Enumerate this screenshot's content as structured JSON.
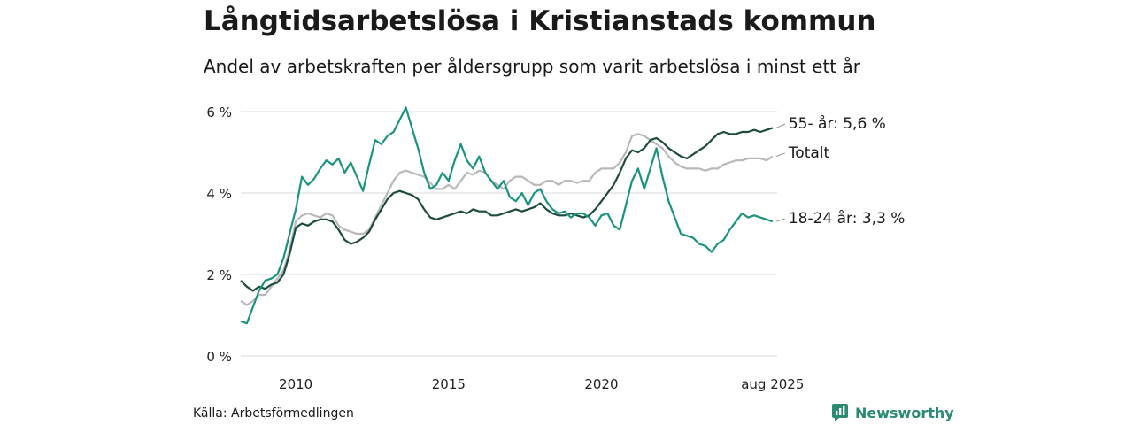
{
  "title": "Långtidsarbetslösa i Kristianstads kommun",
  "subtitle": "Andel av arbetskraften per åldersgrupp som varit arbetslösa i minst ett år",
  "source": "Källa: Arbetsförmedlingen",
  "brand": "Newsworthy",
  "colors": {
    "s55": "#1f4b3e",
    "total": "#b8b8bd",
    "s1824": "#1a9480",
    "grid": "#d9d9d9",
    "brand": "#2a8a72"
  },
  "chart_data": {
    "type": "line",
    "xlim": [
      2008.2,
      2025.75
    ],
    "ylim": [
      0,
      6
    ],
    "yticks": [
      {
        "value": 0,
        "label": "0 %"
      },
      {
        "value": 2,
        "label": "2 %"
      },
      {
        "value": 4,
        "label": "4 %"
      },
      {
        "value": 6,
        "label": "6 %"
      }
    ],
    "xticks": [
      {
        "value": 2010,
        "label": "2010"
      },
      {
        "value": 2015,
        "label": "2015"
      },
      {
        "value": 2020,
        "label": "2020"
      },
      {
        "value": 2025.6,
        "label": "aug 2025"
      }
    ],
    "grid": true,
    "series": [
      {
        "name": "Totalt",
        "end_label": "Totalt",
        "colorKey": "total",
        "points": [
          [
            2008.2,
            1.35
          ],
          [
            2008.4,
            1.25
          ],
          [
            2008.6,
            1.35
          ],
          [
            2008.8,
            1.5
          ],
          [
            2009.0,
            1.5
          ],
          [
            2009.2,
            1.7
          ],
          [
            2009.4,
            1.9
          ],
          [
            2009.6,
            2.1
          ],
          [
            2009.8,
            2.6
          ],
          [
            2010.0,
            3.3
          ],
          [
            2010.2,
            3.45
          ],
          [
            2010.4,
            3.5
          ],
          [
            2010.6,
            3.45
          ],
          [
            2010.8,
            3.4
          ],
          [
            2011.0,
            3.5
          ],
          [
            2011.2,
            3.45
          ],
          [
            2011.4,
            3.2
          ],
          [
            2011.6,
            3.1
          ],
          [
            2011.8,
            3.05
          ],
          [
            2012.0,
            3.0
          ],
          [
            2012.2,
            3.0
          ],
          [
            2012.4,
            3.1
          ],
          [
            2012.6,
            3.4
          ],
          [
            2012.8,
            3.7
          ],
          [
            2013.0,
            4.0
          ],
          [
            2013.2,
            4.3
          ],
          [
            2013.4,
            4.5
          ],
          [
            2013.6,
            4.55
          ],
          [
            2013.8,
            4.5
          ],
          [
            2014.0,
            4.45
          ],
          [
            2014.2,
            4.4
          ],
          [
            2014.4,
            4.25
          ],
          [
            2014.6,
            4.1
          ],
          [
            2014.8,
            4.1
          ],
          [
            2015.0,
            4.2
          ],
          [
            2015.2,
            4.1
          ],
          [
            2015.4,
            4.3
          ],
          [
            2015.6,
            4.5
          ],
          [
            2015.8,
            4.45
          ],
          [
            2016.0,
            4.55
          ],
          [
            2016.2,
            4.5
          ],
          [
            2016.4,
            4.3
          ],
          [
            2016.6,
            4.2
          ],
          [
            2016.8,
            4.1
          ],
          [
            2017.0,
            4.3
          ],
          [
            2017.2,
            4.4
          ],
          [
            2017.4,
            4.4
          ],
          [
            2017.6,
            4.3
          ],
          [
            2017.8,
            4.2
          ],
          [
            2018.0,
            4.2
          ],
          [
            2018.2,
            4.3
          ],
          [
            2018.4,
            4.3
          ],
          [
            2018.6,
            4.2
          ],
          [
            2018.8,
            4.3
          ],
          [
            2019.0,
            4.3
          ],
          [
            2019.2,
            4.25
          ],
          [
            2019.4,
            4.3
          ],
          [
            2019.6,
            4.3
          ],
          [
            2019.8,
            4.5
          ],
          [
            2020.0,
            4.6
          ],
          [
            2020.2,
            4.6
          ],
          [
            2020.4,
            4.6
          ],
          [
            2020.6,
            4.75
          ],
          [
            2020.8,
            5.0
          ],
          [
            2021.0,
            5.4
          ],
          [
            2021.2,
            5.45
          ],
          [
            2021.4,
            5.4
          ],
          [
            2021.6,
            5.3
          ],
          [
            2021.8,
            5.2
          ],
          [
            2022.0,
            5.1
          ],
          [
            2022.2,
            4.9
          ],
          [
            2022.4,
            4.75
          ],
          [
            2022.6,
            4.65
          ],
          [
            2022.8,
            4.6
          ],
          [
            2023.0,
            4.6
          ],
          [
            2023.2,
            4.6
          ],
          [
            2023.4,
            4.55
          ],
          [
            2023.6,
            4.6
          ],
          [
            2023.8,
            4.6
          ],
          [
            2024.0,
            4.7
          ],
          [
            2024.2,
            4.75
          ],
          [
            2024.4,
            4.8
          ],
          [
            2024.6,
            4.8
          ],
          [
            2024.8,
            4.85
          ],
          [
            2025.0,
            4.85
          ],
          [
            2025.2,
            4.85
          ],
          [
            2025.4,
            4.8
          ],
          [
            2025.6,
            4.9
          ]
        ]
      },
      {
        "name": "55- år",
        "end_label": "55- år: 5,6 %",
        "colorKey": "s55",
        "points": [
          [
            2008.2,
            1.85
          ],
          [
            2008.4,
            1.7
          ],
          [
            2008.6,
            1.6
          ],
          [
            2008.8,
            1.7
          ],
          [
            2009.0,
            1.65
          ],
          [
            2009.2,
            1.75
          ],
          [
            2009.4,
            1.8
          ],
          [
            2009.6,
            2.0
          ],
          [
            2009.8,
            2.5
          ],
          [
            2010.0,
            3.15
          ],
          [
            2010.2,
            3.25
          ],
          [
            2010.4,
            3.2
          ],
          [
            2010.6,
            3.3
          ],
          [
            2010.8,
            3.35
          ],
          [
            2011.0,
            3.35
          ],
          [
            2011.2,
            3.3
          ],
          [
            2011.4,
            3.1
          ],
          [
            2011.6,
            2.85
          ],
          [
            2011.8,
            2.75
          ],
          [
            2012.0,
            2.8
          ],
          [
            2012.2,
            2.9
          ],
          [
            2012.4,
            3.05
          ],
          [
            2012.6,
            3.35
          ],
          [
            2012.8,
            3.6
          ],
          [
            2013.0,
            3.85
          ],
          [
            2013.2,
            4.0
          ],
          [
            2013.4,
            4.05
          ],
          [
            2013.6,
            4.0
          ],
          [
            2013.8,
            3.95
          ],
          [
            2014.0,
            3.85
          ],
          [
            2014.2,
            3.6
          ],
          [
            2014.4,
            3.4
          ],
          [
            2014.6,
            3.35
          ],
          [
            2014.8,
            3.4
          ],
          [
            2015.0,
            3.45
          ],
          [
            2015.2,
            3.5
          ],
          [
            2015.4,
            3.55
          ],
          [
            2015.6,
            3.5
          ],
          [
            2015.8,
            3.6
          ],
          [
            2016.0,
            3.55
          ],
          [
            2016.2,
            3.55
          ],
          [
            2016.4,
            3.45
          ],
          [
            2016.6,
            3.45
          ],
          [
            2016.8,
            3.5
          ],
          [
            2017.0,
            3.55
          ],
          [
            2017.2,
            3.6
          ],
          [
            2017.4,
            3.55
          ],
          [
            2017.6,
            3.6
          ],
          [
            2017.8,
            3.65
          ],
          [
            2018.0,
            3.75
          ],
          [
            2018.2,
            3.6
          ],
          [
            2018.4,
            3.5
          ],
          [
            2018.6,
            3.45
          ],
          [
            2018.8,
            3.45
          ],
          [
            2019.0,
            3.5
          ],
          [
            2019.2,
            3.45
          ],
          [
            2019.4,
            3.4
          ],
          [
            2019.6,
            3.45
          ],
          [
            2019.8,
            3.6
          ],
          [
            2020.0,
            3.8
          ],
          [
            2020.2,
            4.0
          ],
          [
            2020.4,
            4.2
          ],
          [
            2020.6,
            4.5
          ],
          [
            2020.8,
            4.85
          ],
          [
            2021.0,
            5.05
          ],
          [
            2021.2,
            5.0
          ],
          [
            2021.4,
            5.1
          ],
          [
            2021.6,
            5.3
          ],
          [
            2021.8,
            5.35
          ],
          [
            2022.0,
            5.25
          ],
          [
            2022.2,
            5.1
          ],
          [
            2022.4,
            5.0
          ],
          [
            2022.6,
            4.9
          ],
          [
            2022.8,
            4.85
          ],
          [
            2023.0,
            4.95
          ],
          [
            2023.2,
            5.05
          ],
          [
            2023.4,
            5.15
          ],
          [
            2023.6,
            5.3
          ],
          [
            2023.8,
            5.45
          ],
          [
            2024.0,
            5.5
          ],
          [
            2024.2,
            5.45
          ],
          [
            2024.4,
            5.45
          ],
          [
            2024.6,
            5.5
          ],
          [
            2024.8,
            5.5
          ],
          [
            2025.0,
            5.55
          ],
          [
            2025.2,
            5.5
          ],
          [
            2025.4,
            5.55
          ],
          [
            2025.6,
            5.6
          ]
        ]
      },
      {
        "name": "18-24 år",
        "end_label": "18-24 år: 3,3 %",
        "colorKey": "s1824",
        "points": [
          [
            2008.2,
            0.85
          ],
          [
            2008.4,
            0.8
          ],
          [
            2008.6,
            1.2
          ],
          [
            2008.8,
            1.6
          ],
          [
            2009.0,
            1.85
          ],
          [
            2009.2,
            1.9
          ],
          [
            2009.4,
            2.0
          ],
          [
            2009.6,
            2.4
          ],
          [
            2009.8,
            3.0
          ],
          [
            2010.0,
            3.6
          ],
          [
            2010.2,
            4.4
          ],
          [
            2010.4,
            4.2
          ],
          [
            2010.6,
            4.35
          ],
          [
            2010.8,
            4.6
          ],
          [
            2011.0,
            4.8
          ],
          [
            2011.2,
            4.7
          ],
          [
            2011.4,
            4.85
          ],
          [
            2011.6,
            4.5
          ],
          [
            2011.8,
            4.75
          ],
          [
            2012.0,
            4.4
          ],
          [
            2012.2,
            4.05
          ],
          [
            2012.4,
            4.7
          ],
          [
            2012.6,
            5.3
          ],
          [
            2012.8,
            5.2
          ],
          [
            2013.0,
            5.4
          ],
          [
            2013.2,
            5.5
          ],
          [
            2013.4,
            5.8
          ],
          [
            2013.6,
            6.1
          ],
          [
            2013.8,
            5.6
          ],
          [
            2014.0,
            5.1
          ],
          [
            2014.2,
            4.5
          ],
          [
            2014.4,
            4.1
          ],
          [
            2014.6,
            4.2
          ],
          [
            2014.8,
            4.5
          ],
          [
            2015.0,
            4.3
          ],
          [
            2015.2,
            4.8
          ],
          [
            2015.4,
            5.2
          ],
          [
            2015.6,
            4.8
          ],
          [
            2015.8,
            4.6
          ],
          [
            2016.0,
            4.9
          ],
          [
            2016.2,
            4.5
          ],
          [
            2016.4,
            4.3
          ],
          [
            2016.6,
            4.1
          ],
          [
            2016.8,
            4.3
          ],
          [
            2017.0,
            3.9
          ],
          [
            2017.2,
            3.8
          ],
          [
            2017.4,
            4.0
          ],
          [
            2017.6,
            3.7
          ],
          [
            2017.8,
            4.0
          ],
          [
            2018.0,
            4.1
          ],
          [
            2018.2,
            3.8
          ],
          [
            2018.4,
            3.6
          ],
          [
            2018.6,
            3.5
          ],
          [
            2018.8,
            3.55
          ],
          [
            2019.0,
            3.4
          ],
          [
            2019.2,
            3.5
          ],
          [
            2019.4,
            3.5
          ],
          [
            2019.6,
            3.4
          ],
          [
            2019.8,
            3.2
          ],
          [
            2020.0,
            3.45
          ],
          [
            2020.2,
            3.5
          ],
          [
            2020.4,
            3.2
          ],
          [
            2020.6,
            3.1
          ],
          [
            2020.8,
            3.7
          ],
          [
            2021.0,
            4.3
          ],
          [
            2021.2,
            4.6
          ],
          [
            2021.4,
            4.1
          ],
          [
            2021.6,
            4.6
          ],
          [
            2021.8,
            5.1
          ],
          [
            2022.0,
            4.4
          ],
          [
            2022.2,
            3.8
          ],
          [
            2022.4,
            3.4
          ],
          [
            2022.6,
            3.0
          ],
          [
            2022.8,
            2.95
          ],
          [
            2023.0,
            2.9
          ],
          [
            2023.2,
            2.75
          ],
          [
            2023.4,
            2.7
          ],
          [
            2023.6,
            2.55
          ],
          [
            2023.8,
            2.75
          ],
          [
            2024.0,
            2.85
          ],
          [
            2024.2,
            3.1
          ],
          [
            2024.4,
            3.3
          ],
          [
            2024.6,
            3.5
          ],
          [
            2024.8,
            3.4
          ],
          [
            2025.0,
            3.45
          ],
          [
            2025.2,
            3.4
          ],
          [
            2025.4,
            3.35
          ],
          [
            2025.6,
            3.3
          ]
        ]
      }
    ]
  }
}
